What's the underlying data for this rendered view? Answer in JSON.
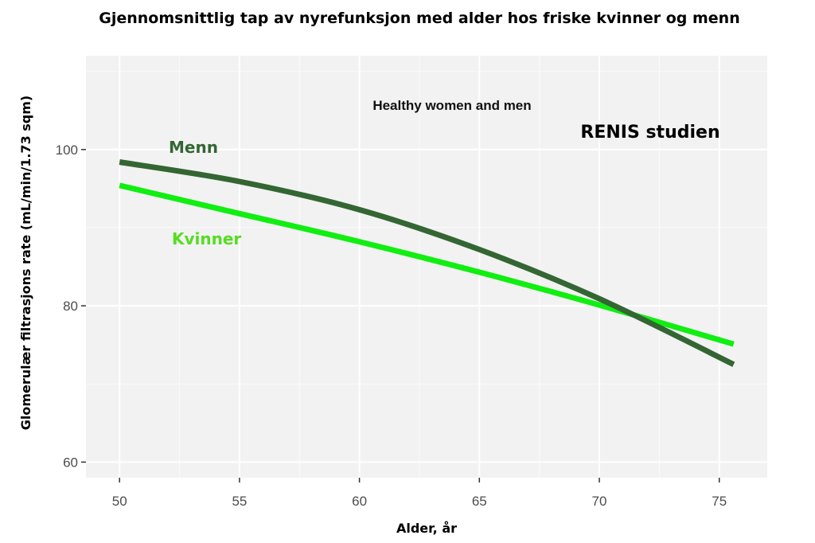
{
  "chart_data": {
    "type": "line",
    "title": "Gjennomsnittlig tap av nyrefunksjon med alder hos friske kvinner og menn",
    "xlabel": "Alder, år",
    "ylabel": "Glomerulær filtrasjons rate (mL/min/1.73 sqm)",
    "xlim": [
      48.6,
      77.0
    ],
    "ylim": [
      58.0,
      112.0
    ],
    "x_ticks": [
      50,
      55,
      60,
      65,
      70,
      75
    ],
    "y_ticks": [
      60,
      80,
      100
    ],
    "grid": true,
    "legend": "none",
    "annotations": [
      "Healthy women and men",
      "RENIS studien"
    ],
    "series": [
      {
        "name": "Menn",
        "color": "#336633",
        "x": [
          50,
          55,
          60,
          65,
          70,
          75.6
        ],
        "y": [
          98.4,
          95.9,
          92.3,
          87.2,
          80.9,
          72.5
        ]
      },
      {
        "name": "Kvinner",
        "color": "#11ee11",
        "x": [
          50,
          55,
          60,
          65,
          70,
          75.6
        ],
        "y": [
          95.4,
          91.8,
          88.2,
          84.3,
          80.1,
          75.1
        ]
      }
    ]
  }
}
